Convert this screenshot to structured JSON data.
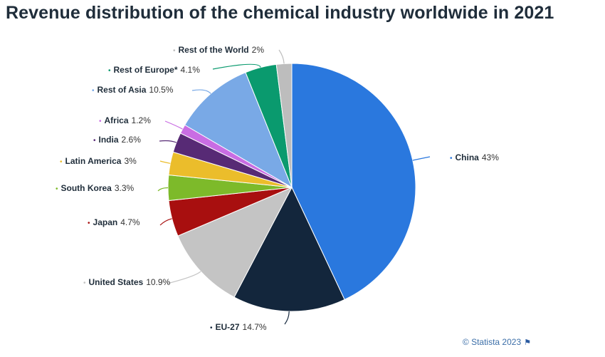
{
  "title": "Revenue distribution of the chemical industry worldwide in 2021",
  "credit": {
    "text": "© Statista 2023",
    "flag_icon": "flag-icon"
  },
  "chart_data": {
    "type": "pie",
    "title": "Revenue distribution of the chemical industry worldwide in 2021",
    "unit": "%",
    "slices": [
      {
        "label": "China",
        "value": 43,
        "display": "43%",
        "color": "#2a78de"
      },
      {
        "label": "EU-27",
        "value": 14.7,
        "display": "14.7%",
        "color": "#13263c"
      },
      {
        "label": "United States",
        "value": 10.9,
        "display": "10.9%",
        "color": "#c4c4c4"
      },
      {
        "label": "Japan",
        "value": 4.7,
        "display": "4.7%",
        "color": "#a80f0f"
      },
      {
        "label": "South Korea",
        "value": 3.3,
        "display": "3.3%",
        "color": "#7dba2a"
      },
      {
        "label": "Latin America",
        "value": 3,
        "display": "3%",
        "color": "#ebbd2b"
      },
      {
        "label": "India",
        "value": 2.6,
        "display": "2.6%",
        "color": "#572a75"
      },
      {
        "label": "Africa",
        "value": 1.2,
        "display": "1.2%",
        "color": "#c96de3"
      },
      {
        "label": "Rest of Asia",
        "value": 10.5,
        "display": "10.5%",
        "color": "#79a9e6"
      },
      {
        "label": "Rest of Europe*",
        "value": 4.1,
        "display": "4.1%",
        "color": "#0a9a6e"
      },
      {
        "label": "Rest of the World",
        "value": 2,
        "display": "2%",
        "color": "#bdbdbd"
      }
    ]
  }
}
